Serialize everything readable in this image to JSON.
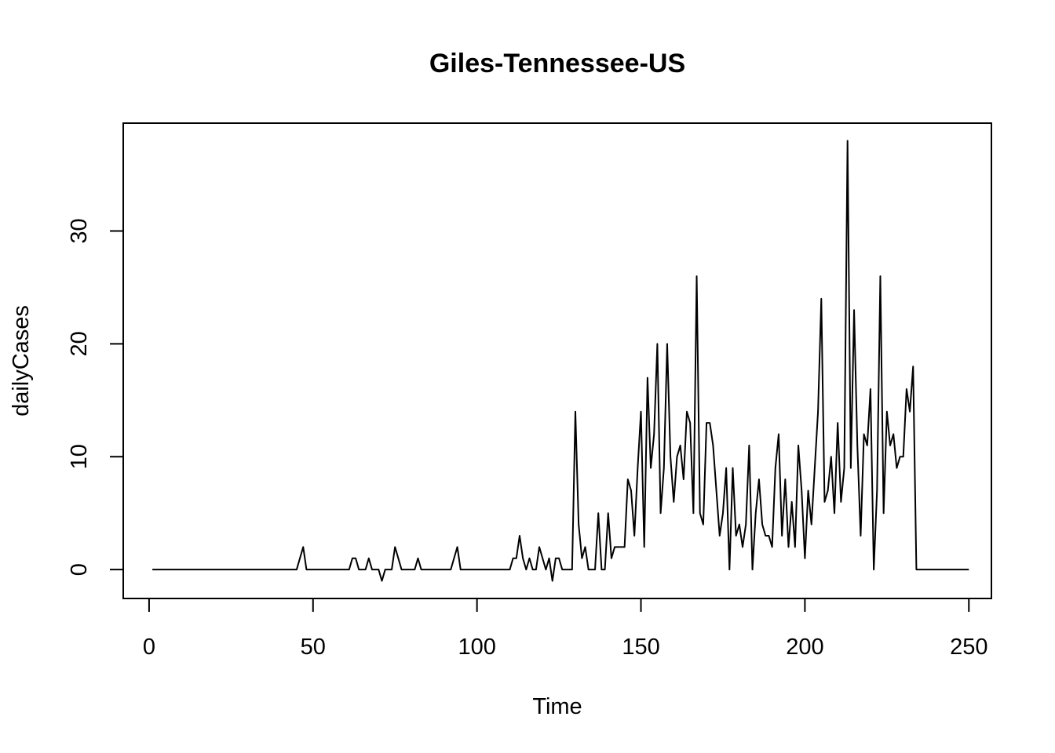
{
  "chart_data": {
    "type": "line",
    "title": "Giles-Tennessee-US",
    "xlabel": "Time",
    "ylabel": "dailyCases",
    "xlim": [
      -7.88,
      256.88
    ],
    "ylim": [
      -2.56,
      39.56
    ],
    "xticks": [
      0,
      50,
      100,
      150,
      200,
      250
    ],
    "yticks": [
      0,
      10,
      20,
      30
    ],
    "grid": false,
    "legend": "none",
    "line_color": "#000000",
    "series": [
      {
        "x_start": 1,
        "values": [
          0,
          0,
          0,
          0,
          0,
          0,
          0,
          0,
          0,
          0,
          0,
          0,
          0,
          0,
          0,
          0,
          0,
          0,
          0,
          0,
          0,
          0,
          0,
          0,
          0,
          0,
          0,
          0,
          0,
          0,
          0,
          0,
          0,
          0,
          0,
          0,
          0,
          0,
          0,
          0,
          0,
          0,
          0,
          0,
          0,
          1,
          2,
          0,
          0,
          0,
          0,
          0,
          0,
          0,
          0,
          0,
          0,
          0,
          0,
          0,
          0,
          1,
          1,
          0,
          0,
          0,
          1,
          0,
          0,
          0,
          -1,
          0,
          0,
          0,
          2,
          1,
          0,
          0,
          0,
          0,
          0,
          1,
          0,
          0,
          0,
          0,
          0,
          0,
          0,
          0,
          0,
          0,
          1,
          2,
          0,
          0,
          0,
          0,
          0,
          0,
          0,
          0,
          0,
          0,
          0,
          0,
          0,
          0,
          0,
          0,
          1,
          1,
          3,
          1,
          0,
          1,
          0,
          0,
          2,
          1,
          0,
          1,
          -1,
          1,
          1,
          0,
          0,
          0,
          0,
          14,
          4,
          1,
          2,
          0,
          0,
          0,
          5,
          0,
          0,
          5,
          1,
          2,
          2,
          2,
          2,
          8,
          7,
          3,
          9,
          14,
          2,
          17,
          9,
          12,
          20,
          5,
          9,
          20,
          10,
          6,
          10,
          11,
          8,
          14,
          13,
          5,
          26,
          5,
          4,
          13,
          13,
          11,
          7,
          3,
          5,
          9,
          0,
          9,
          3,
          4,
          2,
          4,
          11,
          0,
          5,
          8,
          4,
          3,
          3,
          2,
          9,
          12,
          3,
          8,
          2,
          6,
          2,
          11,
          7,
          1,
          7,
          4,
          9,
          14,
          24,
          6,
          7,
          10,
          5,
          13,
          6,
          9,
          38,
          9,
          23,
          11,
          3,
          12,
          11,
          16,
          0,
          7,
          26,
          5,
          14,
          11,
          12,
          9,
          10,
          10,
          16,
          14,
          18,
          0,
          0,
          0,
          0,
          0,
          0,
          0,
          0,
          0,
          0,
          0,
          0,
          0,
          0,
          0,
          0,
          0
        ]
      }
    ]
  }
}
